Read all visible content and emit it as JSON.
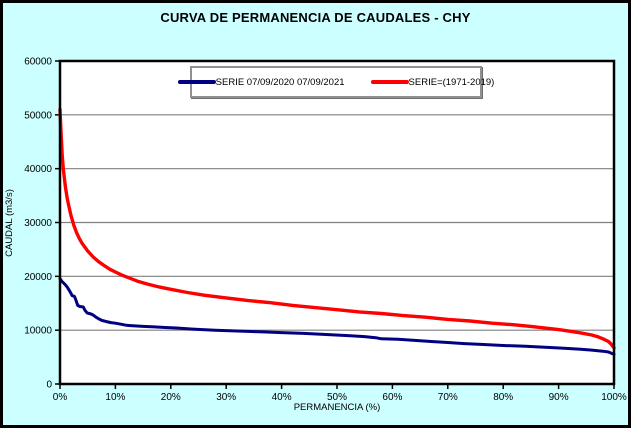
{
  "chart_data": {
    "type": "line",
    "title": "CURVA DE PERMANENCIA DE CAUDALES - CHY",
    "xlabel": "PERMANENCIA (%)",
    "ylabel": "CAUDAL (m3/s)",
    "xlim": [
      0,
      100
    ],
    "ylim": [
      0,
      60000
    ],
    "x_ticks": [
      {
        "value": 0,
        "label": "0%"
      },
      {
        "value": 10,
        "label": "10%"
      },
      {
        "value": 20,
        "label": "20%"
      },
      {
        "value": 30,
        "label": "30%"
      },
      {
        "value": 40,
        "label": "40%"
      },
      {
        "value": 50,
        "label": "50%"
      },
      {
        "value": 60,
        "label": "60%"
      },
      {
        "value": 70,
        "label": "70%"
      },
      {
        "value": 80,
        "label": "80%"
      },
      {
        "value": 90,
        "label": "90%"
      },
      {
        "value": 100,
        "label": "100%"
      }
    ],
    "y_ticks": [
      {
        "value": 0,
        "label": "0"
      },
      {
        "value": 10000,
        "label": "10000"
      },
      {
        "value": 20000,
        "label": "20000"
      },
      {
        "value": 30000,
        "label": "30000"
      },
      {
        "value": 40000,
        "label": "40000"
      },
      {
        "value": 50000,
        "label": "50000"
      },
      {
        "value": 60000,
        "label": "60000"
      }
    ],
    "grid": "horizontal",
    "legend_position": "top-center-inside",
    "colors": {
      "chart_background": "#CCFFFF",
      "plot_background": "#FFFFFF",
      "gridline": "#808080",
      "axis": "#000000",
      "series_blue": "#000080",
      "series_red": "#FF0000"
    },
    "series": [
      {
        "name": "SERIE 07/09/2020 07/09/2021",
        "color": "#000080",
        "points": [
          [
            0,
            19600
          ],
          [
            0.3,
            19100
          ],
          [
            0.7,
            18700
          ],
          [
            1.0,
            18400
          ],
          [
            1.3,
            18000
          ],
          [
            1.6,
            17500
          ],
          [
            1.9,
            17000
          ],
          [
            2.2,
            16400
          ],
          [
            2.6,
            16300
          ],
          [
            2.9,
            15500
          ],
          [
            3.2,
            14600
          ],
          [
            3.6,
            14400
          ],
          [
            4.2,
            14300
          ],
          [
            4.5,
            13700
          ],
          [
            4.9,
            13200
          ],
          [
            5.6,
            13000
          ],
          [
            6.0,
            12800
          ],
          [
            6.5,
            12400
          ],
          [
            7.0,
            12100
          ],
          [
            7.6,
            11800
          ],
          [
            8.4,
            11600
          ],
          [
            9.2,
            11400
          ],
          [
            10,
            11300
          ],
          [
            11,
            11100
          ],
          [
            12,
            10900
          ],
          [
            13.5,
            10800
          ],
          [
            15,
            10700
          ],
          [
            17,
            10600
          ],
          [
            19,
            10500
          ],
          [
            21,
            10400
          ],
          [
            24,
            10200
          ],
          [
            28,
            10000
          ],
          [
            32,
            9850
          ],
          [
            36,
            9700
          ],
          [
            40,
            9550
          ],
          [
            44,
            9400
          ],
          [
            48,
            9200
          ],
          [
            52,
            9000
          ],
          [
            55,
            8800
          ],
          [
            57,
            8600
          ],
          [
            58,
            8400
          ],
          [
            61,
            8300
          ],
          [
            64,
            8100
          ],
          [
            67,
            7900
          ],
          [
            70,
            7700
          ],
          [
            73,
            7500
          ],
          [
            76,
            7350
          ],
          [
            80,
            7150
          ],
          [
            84,
            7000
          ],
          [
            88,
            6800
          ],
          [
            91,
            6650
          ],
          [
            94,
            6450
          ],
          [
            96,
            6300
          ],
          [
            98,
            6100
          ],
          [
            99,
            5950
          ],
          [
            100,
            5500
          ]
        ]
      },
      {
        "name": "SERIE=(1971-2019)",
        "color": "#FF0000",
        "points": [
          [
            0,
            51000
          ],
          [
            0.2,
            46500
          ],
          [
            0.4,
            42500
          ],
          [
            0.6,
            40000
          ],
          [
            0.8,
            38200
          ],
          [
            1.0,
            36500
          ],
          [
            1.3,
            34500
          ],
          [
            1.6,
            33000
          ],
          [
            2.0,
            31200
          ],
          [
            2.5,
            29500
          ],
          [
            3.0,
            28100
          ],
          [
            3.5,
            27000
          ],
          [
            4.0,
            26100
          ],
          [
            5.0,
            24700
          ],
          [
            6.0,
            23600
          ],
          [
            7.0,
            22700
          ],
          [
            8.0,
            22000
          ],
          [
            9.0,
            21300
          ],
          [
            10,
            20800
          ],
          [
            11,
            20300
          ],
          [
            12,
            19900
          ],
          [
            14,
            19100
          ],
          [
            16,
            18500
          ],
          [
            18,
            18000
          ],
          [
            20,
            17600
          ],
          [
            23,
            17000
          ],
          [
            26,
            16500
          ],
          [
            30,
            16000
          ],
          [
            34,
            15500
          ],
          [
            38,
            15100
          ],
          [
            42,
            14600
          ],
          [
            46,
            14200
          ],
          [
            50,
            13800
          ],
          [
            54,
            13400
          ],
          [
            58,
            13100
          ],
          [
            62,
            12700
          ],
          [
            66,
            12400
          ],
          [
            70,
            12000
          ],
          [
            74,
            11700
          ],
          [
            78,
            11300
          ],
          [
            82,
            11000
          ],
          [
            85,
            10700
          ],
          [
            88,
            10350
          ],
          [
            90,
            10100
          ],
          [
            92,
            9800
          ],
          [
            94,
            9500
          ],
          [
            96,
            9100
          ],
          [
            97,
            8800
          ],
          [
            98,
            8400
          ],
          [
            99,
            7900
          ],
          [
            99.5,
            7400
          ],
          [
            100,
            6700
          ]
        ]
      }
    ]
  }
}
